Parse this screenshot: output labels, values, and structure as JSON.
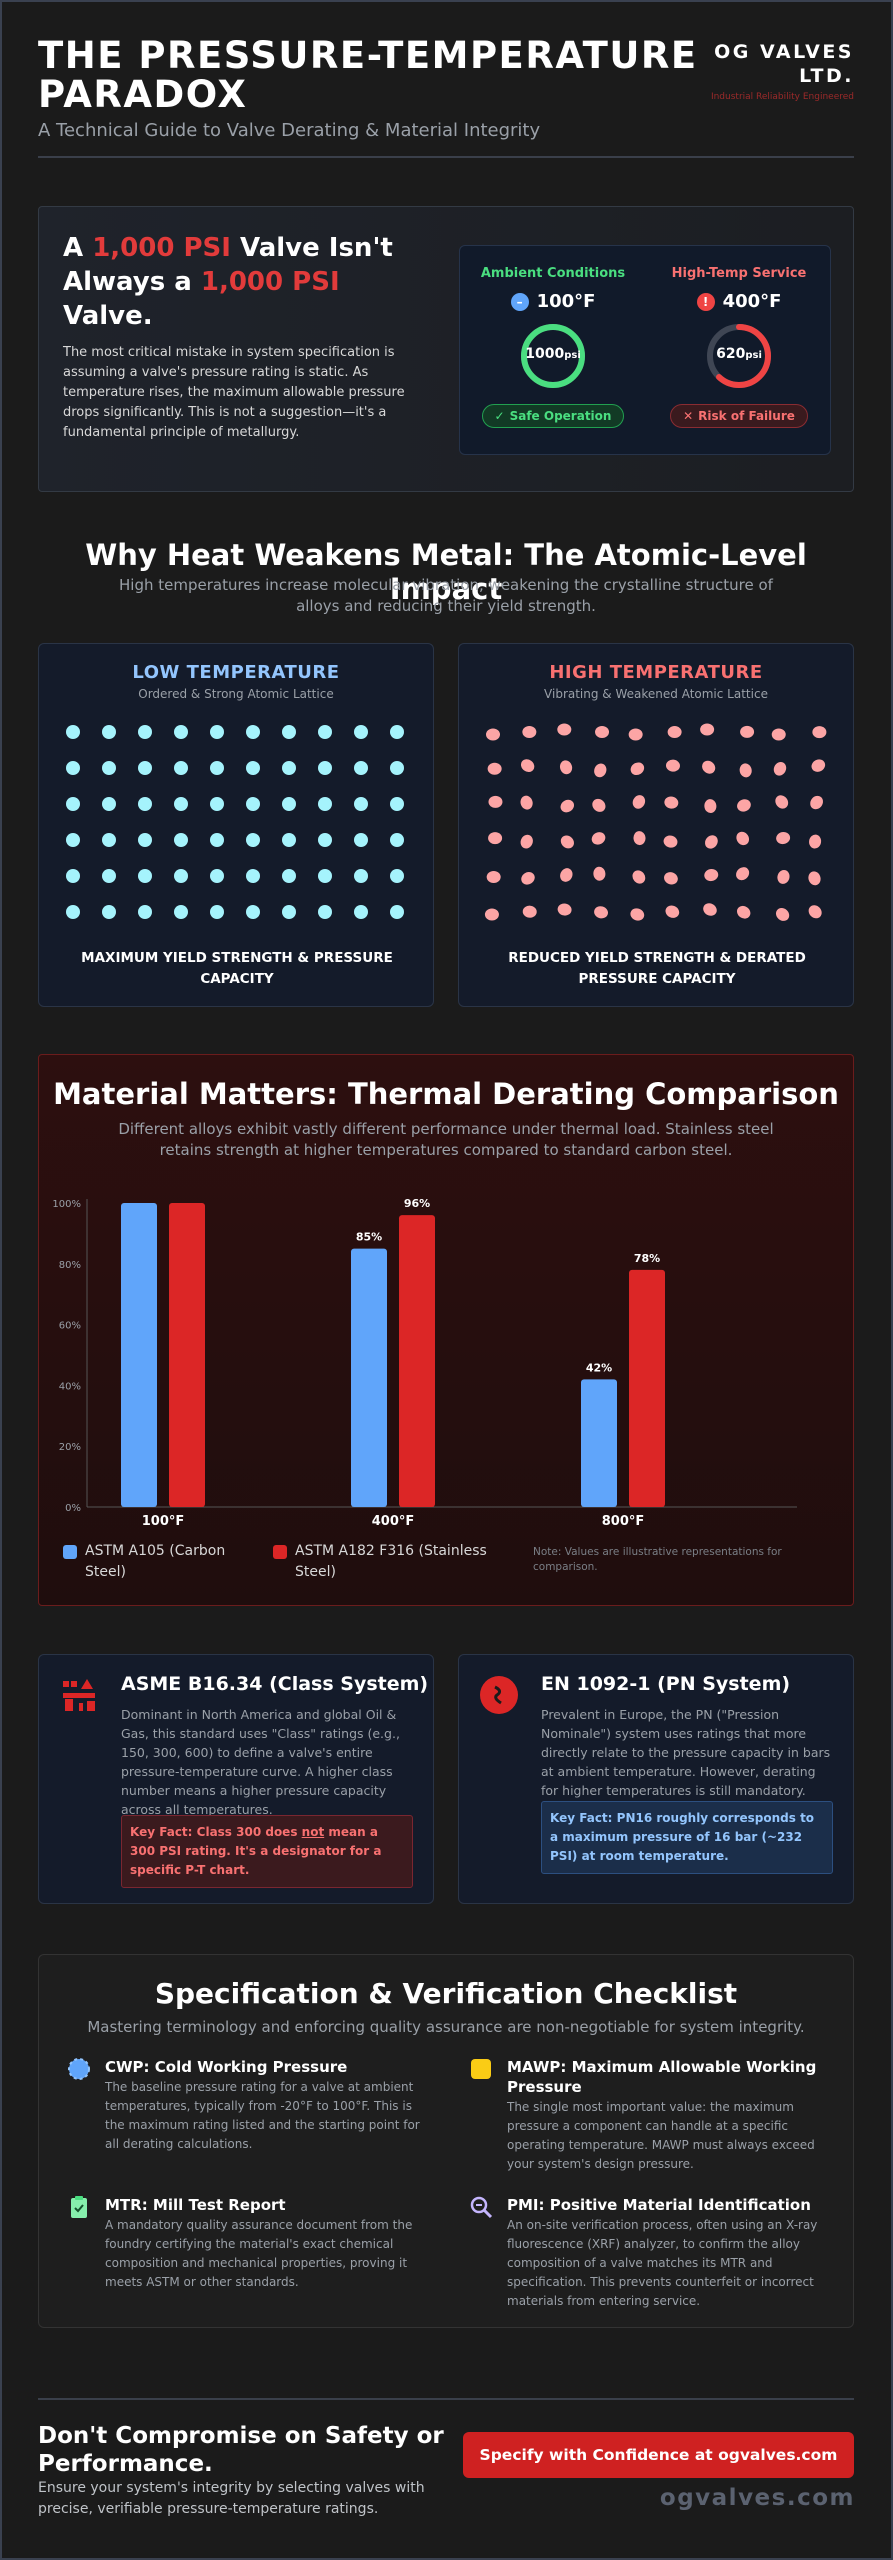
{
  "header": {
    "title": "THE PRESSURE-TEMPERATURE PARADOX",
    "subtitle": "A Technical Guide to Valve Derating & Material Integrity",
    "brand_name": "OG VALVES LTD.",
    "brand_tagline": "Industrial Reliability Engineered"
  },
  "hero": {
    "heading_part1": "A ",
    "heading_red1": "1,000 PSI",
    "heading_part2": " Valve Isn't Always a ",
    "heading_red2": "1,000 PSI",
    "heading_part3": " Valve.",
    "body": "The most critical mistake in system specification is assuming a valve's pressure rating is static. As temperature rises, the maximum allowable pressure drops significantly. This is not a suggestion—it's a fundamental principle of metallurgy.",
    "ambient": {
      "title": "Ambient Conditions",
      "temp": "100°F",
      "value": "1000",
      "unit": "psi",
      "fraction": 1.0,
      "status": "Safe Operation",
      "color": "#4ade80"
    },
    "hightemp": {
      "title": "High-Temp Service",
      "temp": "400°F",
      "value": "620",
      "unit": "psi",
      "fraction": 0.62,
      "status": "Risk of Failure",
      "color": "#ef4444"
    }
  },
  "atomic": {
    "title": "Why Heat Weakens Metal: The Atomic-Level Impact",
    "desc": "High temperatures increase molecular vibration, weakening the crystalline structure of alloys and reducing their yield strength.",
    "low": {
      "title": "LOW TEMPERATURE",
      "sub": "Ordered & Strong Atomic Lattice",
      "caption": "MAXIMUM YIELD STRENGTH & PRESSURE CAPACITY",
      "color": "#93c5fd",
      "atom_color": "#a5f3fc"
    },
    "high": {
      "title": "HIGH TEMPERATURE",
      "sub": "Vibrating & Weakened Atomic Lattice",
      "caption": "REDUCED YIELD STRENGTH & DERATED PRESSURE CAPACITY",
      "color": "#f87171",
      "atom_color": "#fca5a5"
    }
  },
  "chart_section": {
    "title": "Material Matters: Thermal Derating Comparison",
    "desc": "Different alloys exhibit vastly different performance under thermal load. Stainless steel retains strength at higher temperatures compared to standard carbon steel.",
    "note": "Note: Values are illustrative representations for comparison."
  },
  "chart_data": {
    "type": "bar",
    "categories": [
      "100°F",
      "400°F",
      "800°F"
    ],
    "series": [
      {
        "name": "ASTM A105 (Carbon Steel)",
        "values": [
          100,
          85,
          42
        ],
        "labels": [
          "",
          "85%",
          "42%"
        ],
        "color": "#60a5fa"
      },
      {
        "name": "ASTM A182 F316 (Stainless Steel)",
        "values": [
          100,
          96,
          78
        ],
        "labels": [
          "",
          "96%",
          "78%"
        ],
        "color": "#dc2626"
      }
    ],
    "yticks": [
      "0%",
      "20%",
      "40%",
      "60%",
      "80%",
      "100%"
    ],
    "ylim": [
      0,
      100
    ],
    "grid": false,
    "legend": "bottom-left"
  },
  "asme": {
    "title": "ASME B16.34 (Class System)",
    "body": "Dominant in North America and global Oil & Gas, this standard uses \"Class\" ratings (e.g., 150, 300, 600) to define a valve's entire pressure-temperature curve. A higher class number means a higher pressure capacity across all temperatures.",
    "fact_pre": "Key Fact: Class 300 does ",
    "fact_em": "not",
    "fact_post": " mean a 300 PSI rating. It's a designator for a specific P-T chart."
  },
  "en": {
    "title": "EN 1092-1 (PN System)",
    "body": "Prevalent in Europe, the PN (\"Pression Nominale\") system uses ratings that more directly relate to the pressure capacity in bars at ambient temperature. However, derating for higher temperatures is still mandatory.",
    "fact": "Key Fact: PN16 roughly corresponds to a maximum pressure of 16 bar (~232 PSI) at room temperature."
  },
  "checklist": {
    "title": "Specification & Verification Checklist",
    "desc": "Mastering terminology and enforcing quality assurance are non-negotiable for system integrity.",
    "items": [
      {
        "title": "CWP: Cold Working Pressure",
        "body": "The baseline pressure rating for a valve at ambient temperatures, typically from -20°F to 100°F. This is the maximum rating listed and the starting point for all derating calculations."
      },
      {
        "title": "MAWP: Maximum Allowable Working Pressure",
        "body": "The single most important value: the maximum pressure a component can handle at a specific operating temperature. MAWP must always exceed your system's design pressure."
      },
      {
        "title": "MTR: Mill Test Report",
        "body": "A mandatory quality assurance document from the foundry certifying the material's exact chemical composition and mechanical properties, proving it meets ASTM or other standards."
      },
      {
        "title": "PMI: Positive Material Identification",
        "body": "An on-site verification process, often using an X-ray fluorescence (XRF) analyzer, to confirm the alloy composition of a valve matches its MTR and specification. This prevents counterfeit or incorrect materials from entering service."
      }
    ]
  },
  "footer": {
    "title": "Don't Compromise on Safety or Performance.",
    "body": "Ensure your system's integrity by selecting valves with precise, verifiable pressure-temperature ratings.",
    "cta": "Specify with Confidence at ogvalves.com",
    "site": "ogvalves.com"
  }
}
